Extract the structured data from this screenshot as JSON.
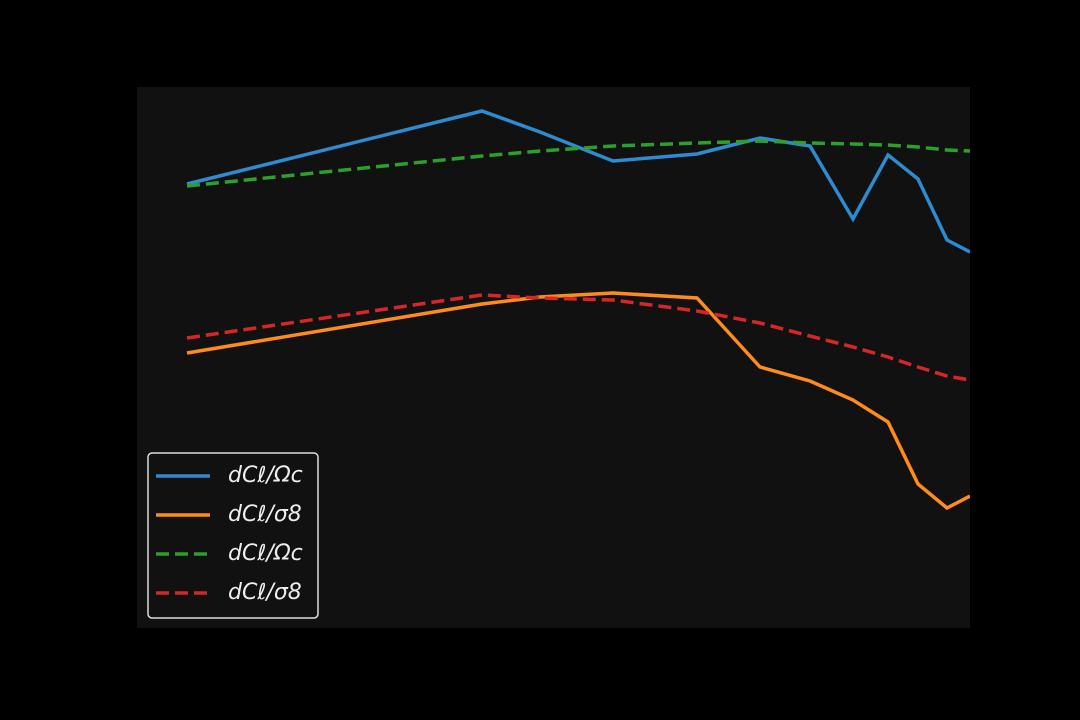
{
  "chart_data": {
    "type": "line",
    "x": [
      50,
      345,
      403,
      476,
      560,
      623,
      673,
      716,
      751,
      781,
      810,
      833
    ],
    "xlim": [
      0,
      833
    ],
    "ylim": [
      0,
      541
    ],
    "legend": "lower left",
    "series": [
      {
        "name": "dCℓ/Ωc",
        "color": "#2e8bd0",
        "dash": false,
        "values": [
          444,
          517,
          496,
          467,
          474,
          490,
          482,
          409,
          473,
          449,
          388,
          376
        ]
      },
      {
        "name": "dCℓ/σ8",
        "color": "#ff8c1a",
        "dash": false,
        "values": [
          275,
          324,
          331,
          335,
          330,
          261,
          247,
          228,
          206,
          144,
          120,
          132
        ]
      },
      {
        "name": "dCℓ/Ωc",
        "color": "#2ca02c",
        "dash": true,
        "values": [
          442,
          472,
          477,
          482,
          485,
          487,
          485,
          484,
          483,
          481,
          478,
          477
        ]
      },
      {
        "name": "dCℓ/σ8",
        "color": "#d62728",
        "dash": true,
        "values": [
          290,
          333,
          330,
          328,
          317,
          305,
          292,
          281,
          271,
          261,
          252,
          248
        ]
      }
    ]
  }
}
